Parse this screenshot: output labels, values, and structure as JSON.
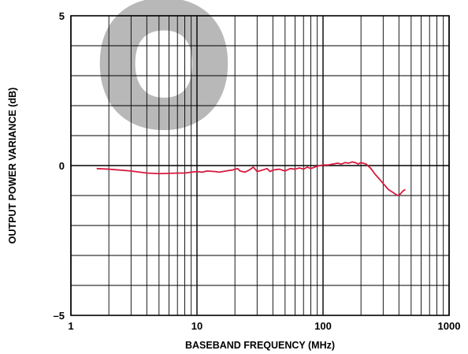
{
  "chart_data": {
    "type": "line",
    "title": "",
    "xlabel": "BASEBAND FREQUENCY (MHz)",
    "ylabel": "OUTPUT POWER VARIANCE (dB)",
    "x_scale": "log",
    "xlim": [
      1,
      1000
    ],
    "ylim": [
      -5,
      5
    ],
    "x_ticks": [
      {
        "value": 1,
        "label": "1"
      },
      {
        "value": 10,
        "label": "10"
      },
      {
        "value": 100,
        "label": "100"
      },
      {
        "value": 1000,
        "label": "1000"
      }
    ],
    "y_ticks": [
      {
        "value": 5,
        "label": "5"
      },
      {
        "value": 0,
        "label": "0"
      },
      {
        "value": -5,
        "label": "–5"
      }
    ],
    "grid": true,
    "watermark": "O",
    "series": [
      {
        "color": "#d7193f",
        "points": [
          [
            1.6,
            -0.1
          ],
          [
            2,
            -0.12
          ],
          [
            3,
            -0.18
          ],
          [
            4,
            -0.25
          ],
          [
            5,
            -0.27
          ],
          [
            6,
            -0.26
          ],
          [
            7,
            -0.25
          ],
          [
            8,
            -0.25
          ],
          [
            9,
            -0.22
          ],
          [
            10,
            -0.2
          ],
          [
            11,
            -0.22
          ],
          [
            12,
            -0.18
          ],
          [
            14,
            -0.2
          ],
          [
            15,
            -0.22
          ],
          [
            17,
            -0.18
          ],
          [
            19,
            -0.15
          ],
          [
            21,
            -0.1
          ],
          [
            22,
            -0.18
          ],
          [
            24,
            -0.22
          ],
          [
            26,
            -0.15
          ],
          [
            28,
            -0.05
          ],
          [
            30,
            -0.2
          ],
          [
            33,
            -0.15
          ],
          [
            36,
            -0.1
          ],
          [
            38,
            -0.2
          ],
          [
            40,
            -0.15
          ],
          [
            45,
            -0.12
          ],
          [
            50,
            -0.18
          ],
          [
            55,
            -0.1
          ],
          [
            60,
            -0.12
          ],
          [
            65,
            -0.08
          ],
          [
            70,
            -0.12
          ],
          [
            75,
            -0.05
          ],
          [
            80,
            -0.1
          ],
          [
            90,
            -0.02
          ],
          [
            100,
            0.02
          ],
          [
            110,
            0.02
          ],
          [
            120,
            0.05
          ],
          [
            130,
            0.08
          ],
          [
            140,
            0.05
          ],
          [
            150,
            0.1
          ],
          [
            160,
            0.08
          ],
          [
            170,
            0.12
          ],
          [
            180,
            0.1
          ],
          [
            190,
            0.05
          ],
          [
            200,
            0.1
          ],
          [
            220,
            0.05
          ],
          [
            240,
            -0.1
          ],
          [
            260,
            -0.3
          ],
          [
            280,
            -0.45
          ],
          [
            300,
            -0.6
          ],
          [
            330,
            -0.8
          ],
          [
            360,
            -0.9
          ],
          [
            390,
            -1.0
          ],
          [
            410,
            -0.95
          ],
          [
            430,
            -0.85
          ],
          [
            450,
            -0.8
          ]
        ]
      }
    ]
  }
}
